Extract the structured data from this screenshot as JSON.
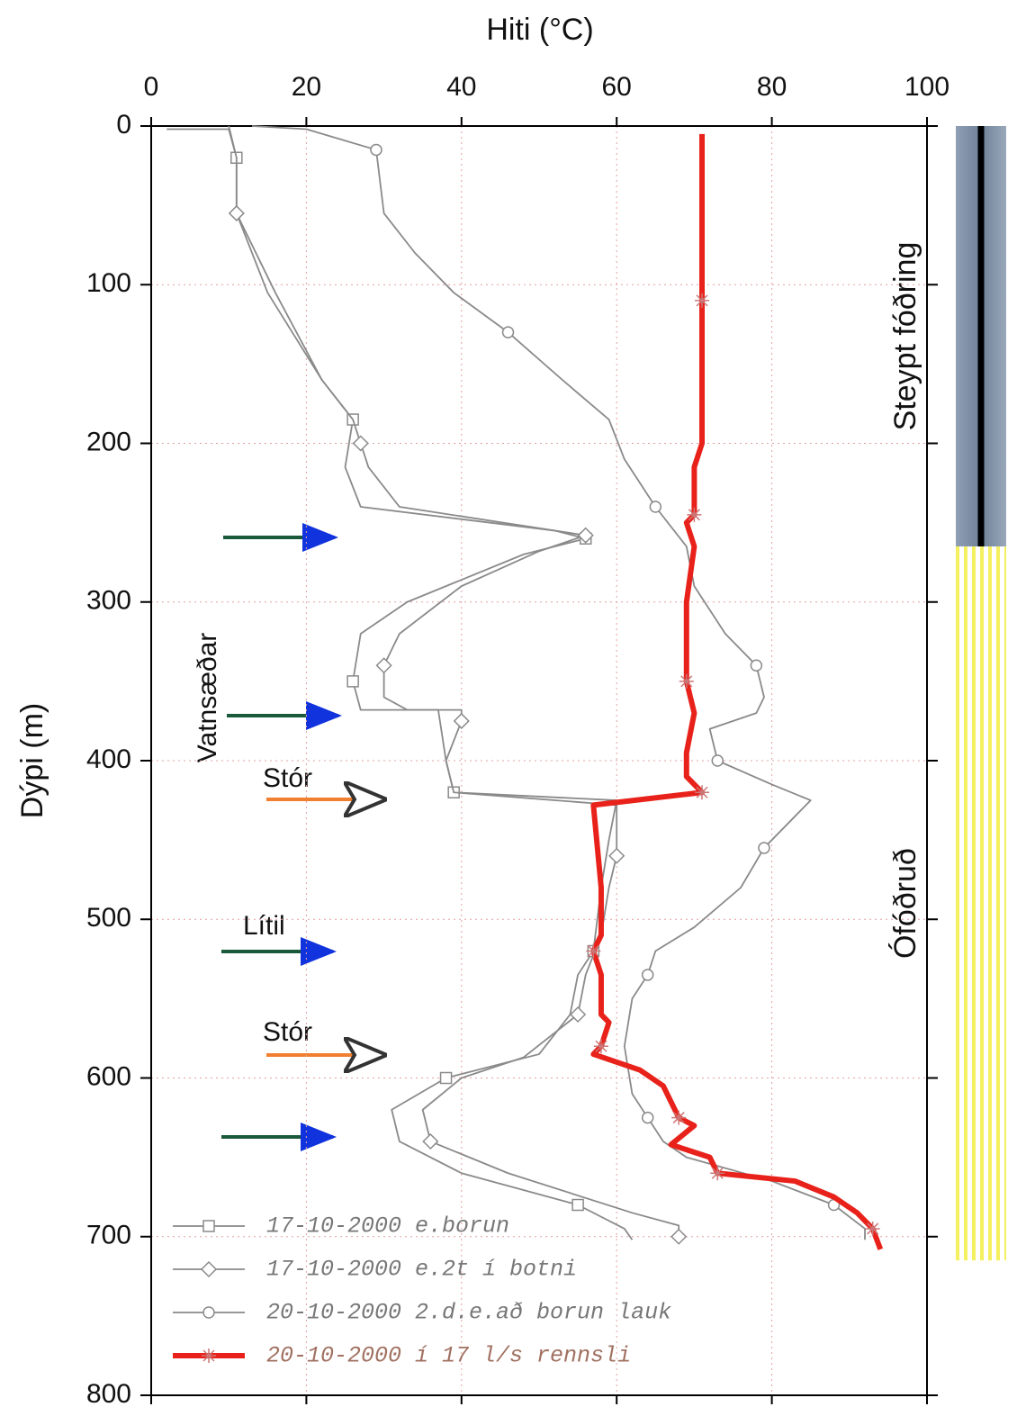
{
  "chart_data": {
    "type": "line",
    "x_label": "Hiti (°C)",
    "y_label": "Dýpi (m)",
    "xlim": [
      0,
      100
    ],
    "xticks": [
      0,
      20,
      40,
      60,
      80,
      100
    ],
    "ylim": [
      0,
      800
    ],
    "yticks": [
      0,
      100,
      200,
      300,
      400,
      500,
      600,
      700,
      800
    ],
    "y_inverted": true,
    "grid": true,
    "legend": "lower left",
    "annotations": {
      "group": "Vatnsæðar",
      "labels": [
        "Stór",
        "Lítil",
        "Stór"
      ]
    },
    "column": [
      {
        "label": "Steypt fóðring",
        "depth": [
          0,
          265
        ]
      },
      {
        "label": "Ófóðruð",
        "depth": [
          265,
          715
        ]
      }
    ],
    "series": [
      {
        "name": "17-10-2000 e.borun",
        "color": "#8a8a8a",
        "marker": "square",
        "x": [
          2,
          10,
          11,
          11,
          15,
          22,
          26,
          25,
          27,
          52,
          56,
          48,
          33,
          27,
          26,
          27,
          37,
          38,
          39,
          60,
          59,
          58,
          57,
          55,
          54,
          50,
          38,
          31,
          32,
          40,
          55,
          61,
          62
        ],
        "y": [
          2,
          2,
          20,
          55,
          105,
          160,
          185,
          215,
          240,
          255,
          260,
          270,
          300,
          320,
          350,
          368,
          368,
          400,
          420,
          425,
          450,
          480,
          520,
          535,
          560,
          585,
          600,
          620,
          640,
          660,
          680,
          695,
          702
        ]
      },
      {
        "name": "17-10-2000 e.2t í botni",
        "color": "#8a8a8a",
        "marker": "diamond",
        "x": [
          10,
          11,
          11,
          16,
          22,
          26,
          27,
          28,
          32,
          52,
          56,
          50,
          40,
          32,
          30,
          30,
          33,
          40,
          40,
          38,
          39,
          60,
          60,
          59,
          58,
          56,
          55,
          48,
          40,
          35,
          36,
          46,
          62,
          68,
          68
        ],
        "y": [
          0,
          20,
          55,
          105,
          160,
          185,
          200,
          215,
          240,
          255,
          258,
          268,
          290,
          320,
          340,
          360,
          368,
          368,
          375,
          400,
          420,
          428,
          460,
          480,
          510,
          535,
          560,
          587,
          600,
          620,
          640,
          660,
          685,
          693,
          700
        ]
      },
      {
        "name": "20-10-2000 2.d.e.að borun lauk",
        "color": "#8a8a8a",
        "marker": "circle",
        "x": [
          13,
          20,
          29,
          30,
          34,
          39,
          46,
          53,
          59,
          61,
          65,
          69,
          70,
          74,
          78,
          79,
          78,
          72,
          73,
          80,
          85,
          83,
          79,
          76,
          70,
          65,
          64,
          62,
          61,
          62,
          64,
          66,
          69,
          80,
          88,
          92,
          92
        ],
        "y": [
          0,
          2,
          15,
          55,
          80,
          105,
          130,
          160,
          185,
          210,
          240,
          265,
          290,
          320,
          340,
          360,
          370,
          380,
          400,
          415,
          425,
          435,
          455,
          480,
          505,
          520,
          535,
          550,
          580,
          610,
          625,
          640,
          650,
          665,
          680,
          695,
          702
        ]
      },
      {
        "name": "20-10-2000 í 17 l/s rennsli",
        "color": "#e8221b",
        "marker": "star",
        "x": [
          71,
          71,
          71,
          71,
          71,
          70,
          70,
          69,
          70,
          69,
          69,
          70,
          69,
          69,
          71,
          57,
          58,
          58,
          57,
          58,
          58,
          59,
          58,
          57,
          63,
          66,
          68,
          70,
          67,
          72,
          73,
          83,
          88,
          91,
          93,
          94
        ],
        "y": [
          5,
          55,
          110,
          160,
          200,
          215,
          245,
          250,
          265,
          300,
          350,
          370,
          395,
          410,
          420,
          428,
          480,
          510,
          520,
          535,
          560,
          565,
          580,
          585,
          595,
          605,
          625,
          630,
          642,
          650,
          660,
          665,
          675,
          685,
          695,
          708
        ]
      }
    ]
  }
}
